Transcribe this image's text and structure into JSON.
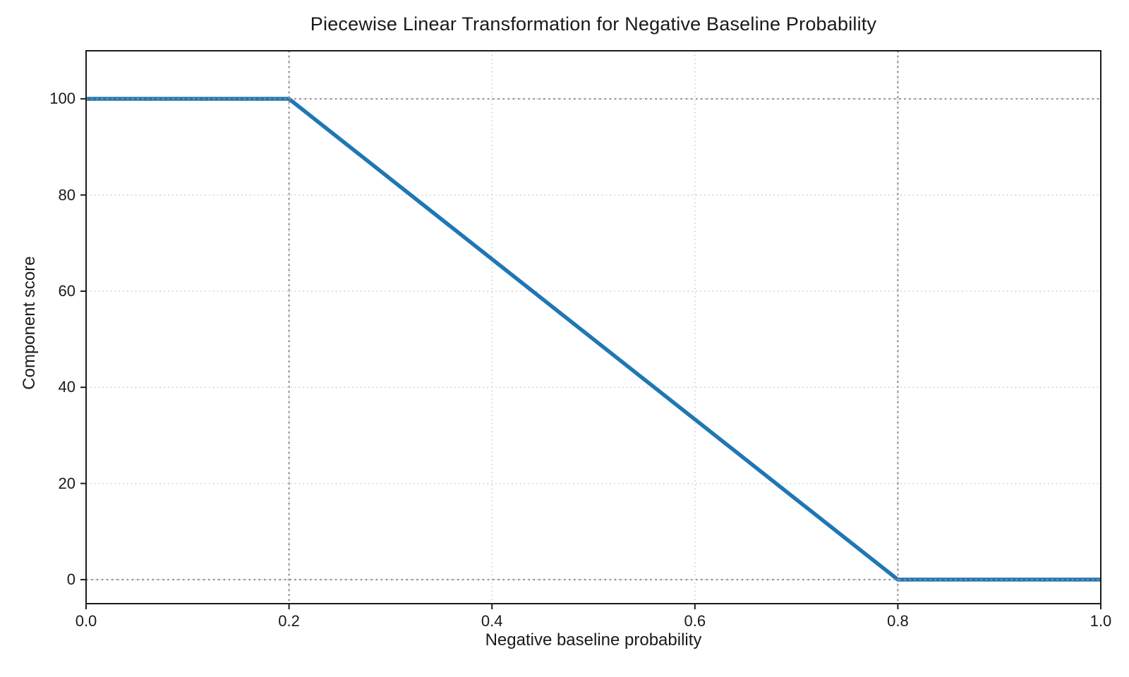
{
  "chart_data": {
    "type": "line",
    "title": "Piecewise Linear Transformation for Negative Baseline Probability",
    "xlabel": "Negative baseline probability",
    "ylabel": "Component score",
    "x": [
      0.0,
      0.2,
      0.8,
      1.0
    ],
    "y": [
      100,
      100,
      0,
      0
    ],
    "xlim": [
      0.0,
      1.0
    ],
    "ylim": [
      -5,
      110
    ],
    "xticks": [
      0.0,
      0.2,
      0.4,
      0.6,
      0.8,
      1.0
    ],
    "xtick_labels": [
      "0.0",
      "0.2",
      "0.4",
      "0.6",
      "0.8",
      "1.0"
    ],
    "yticks": [
      0,
      20,
      40,
      60,
      80,
      100
    ],
    "ytick_labels": [
      "0",
      "20",
      "40",
      "60",
      "80",
      "100"
    ],
    "grid": true,
    "grid_style": "dotted",
    "legend": null,
    "reference_lines": {
      "vertical_x": [
        0.2,
        0.8
      ],
      "horizontal_y": [
        0,
        100
      ]
    },
    "breakpoints": [
      {
        "x": 0.2,
        "y": 100
      },
      {
        "x": 0.8,
        "y": 0
      }
    ],
    "colors": {
      "line": "#1f77b4",
      "grid": "#cccccc",
      "reference": "#909090",
      "spine": "#1c1c1c",
      "text": "#1a1a1a"
    }
  }
}
